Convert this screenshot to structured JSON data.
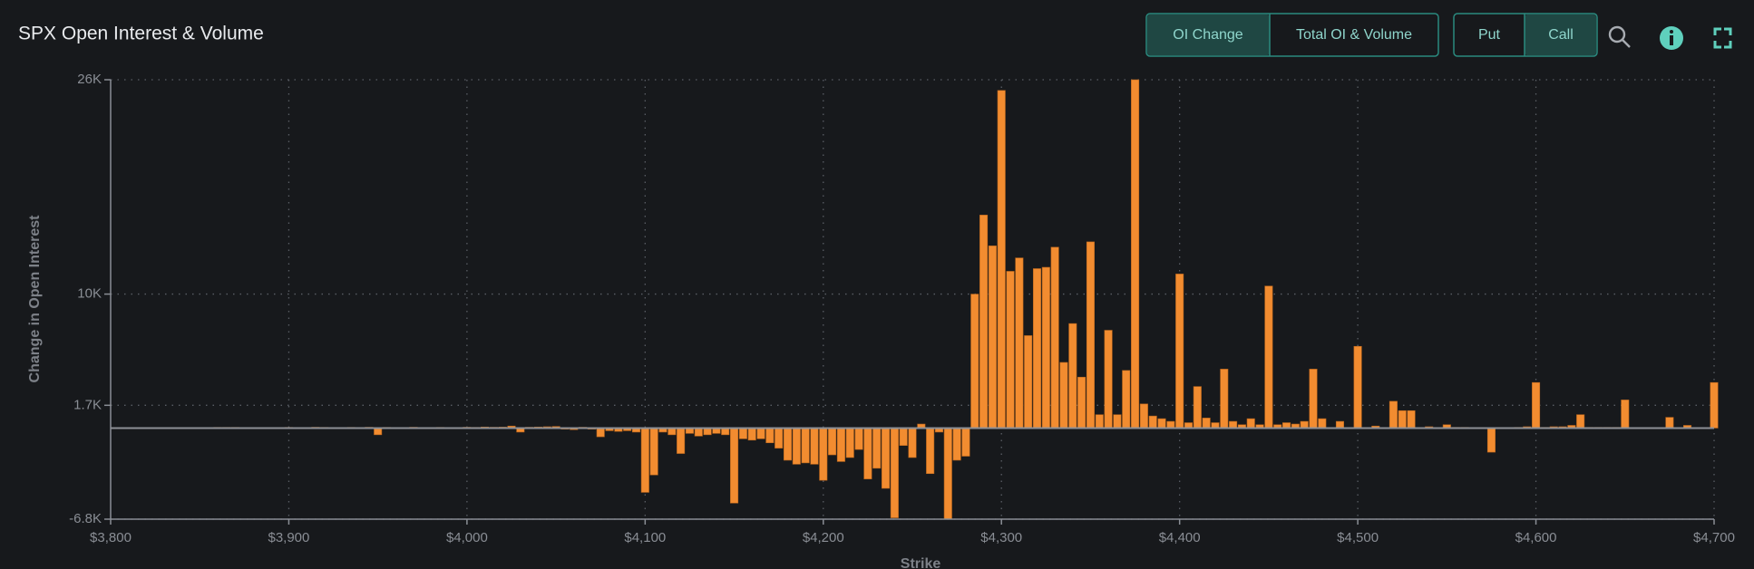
{
  "controls": [
    "OI Change",
    "Total OI & Volume",
    "Put",
    "Call"
  ],
  "chart_data": {
    "type": "bar",
    "title": "SPX Open Interest & Volume",
    "x_label": "Strike",
    "y_label": "Change in Open Interest",
    "color": "#f28c30",
    "grid": true,
    "xlim": [
      3800,
      4700
    ],
    "xticks": [
      {
        "value": 3800,
        "label": "$3,800"
      },
      {
        "value": 3900,
        "label": "$3,900"
      },
      {
        "value": 4000,
        "label": "$4,000"
      },
      {
        "value": 4100,
        "label": "$4,100"
      },
      {
        "value": 4200,
        "label": "$4,200"
      },
      {
        "value": 4300,
        "label": "$4,300"
      },
      {
        "value": 4400,
        "label": "$4,400"
      },
      {
        "value": 4500,
        "label": "$4,500"
      },
      {
        "value": 4600,
        "label": "$4,600"
      },
      {
        "value": 4700,
        "label": "$4,700"
      }
    ],
    "ylim": [
      -6800,
      26000
    ],
    "yticks": [
      {
        "value": -6800,
        "label": "-6.8K"
      },
      {
        "value": 1700,
        "label": "1.7K"
      },
      {
        "value": 10000,
        "label": "10K"
      },
      {
        "value": 26000,
        "label": "26K"
      }
    ],
    "x": [
      3860,
      3865,
      3870,
      3875,
      3880,
      3885,
      3890,
      3895,
      3900,
      3905,
      3910,
      3915,
      3920,
      3925,
      3930,
      3935,
      3940,
      3945,
      3950,
      3955,
      3960,
      3965,
      3970,
      3975,
      3980,
      3985,
      3990,
      3995,
      4000,
      4005,
      4010,
      4015,
      4020,
      4025,
      4030,
      4035,
      4040,
      4045,
      4050,
      4055,
      4060,
      4065,
      4070,
      4075,
      4080,
      4085,
      4090,
      4095,
      4100,
      4105,
      4110,
      4115,
      4120,
      4125,
      4130,
      4135,
      4140,
      4145,
      4150,
      4155,
      4160,
      4165,
      4170,
      4175,
      4180,
      4185,
      4190,
      4195,
      4200,
      4205,
      4210,
      4215,
      4220,
      4225,
      4230,
      4235,
      4240,
      4245,
      4250,
      4255,
      4260,
      4265,
      4270,
      4275,
      4280,
      4285,
      4290,
      4295,
      4300,
      4305,
      4310,
      4315,
      4320,
      4325,
      4330,
      4335,
      4340,
      4345,
      4350,
      4355,
      4360,
      4365,
      4370,
      4375,
      4380,
      4385,
      4390,
      4395,
      4400,
      4405,
      4410,
      4415,
      4420,
      4425,
      4430,
      4435,
      4440,
      4445,
      4450,
      4455,
      4460,
      4465,
      4470,
      4475,
      4480,
      4485,
      4490,
      4495,
      4500,
      4505,
      4510,
      4515,
      4520,
      4525,
      4530,
      4535,
      4540,
      4545,
      4550,
      4555,
      4560,
      4565,
      4570,
      4575,
      4580,
      4585,
      4590,
      4595,
      4600,
      4605,
      4610,
      4615,
      4620,
      4625,
      4630,
      4635,
      4640,
      4645,
      4650,
      4655,
      4660,
      4665,
      4670,
      4675,
      4680,
      4685,
      4690,
      4695,
      4700
    ],
    "values": [
      50,
      50,
      50,
      30,
      40,
      30,
      40,
      30,
      50,
      40,
      30,
      60,
      50,
      40,
      30,
      50,
      40,
      60,
      -500,
      50,
      40,
      30,
      60,
      40,
      30,
      50,
      40,
      30,
      60,
      50,
      80,
      60,
      70,
      150,
      -300,
      60,
      80,
      100,
      120,
      -80,
      -120,
      60,
      -80,
      -650,
      -200,
      -250,
      -200,
      -300,
      -4800,
      -3500,
      -300,
      -500,
      -1900,
      -400,
      -600,
      -500,
      -400,
      -500,
      -5600,
      -800,
      -900,
      -800,
      -1100,
      -1500,
      -2400,
      -2700,
      -2600,
      -2700,
      -3900,
      -2000,
      -2500,
      -2200,
      -1600,
      -3800,
      -3000,
      -4500,
      -6700,
      -1300,
      -2200,
      300,
      -3400,
      -300,
      -6800,
      -2400,
      -2100,
      10000,
      15900,
      13600,
      25200,
      11700,
      12700,
      6900,
      11900,
      12000,
      13500,
      4900,
      7800,
      3800,
      13900,
      1000,
      7300,
      1000,
      4300,
      26000,
      1800,
      900,
      700,
      500,
      11500,
      400,
      3100,
      750,
      400,
      4400,
      500,
      250,
      700,
      250,
      10600,
      250,
      400,
      300,
      500,
      4400,
      700,
      0,
      500,
      0,
      6100,
      0,
      150,
      0,
      2000,
      1300,
      1300,
      0,
      100,
      0,
      250,
      50,
      50,
      -50,
      -50,
      -1800,
      -50,
      -50,
      50,
      100,
      3400,
      50,
      100,
      100,
      200,
      1000,
      50,
      50,
      50,
      50,
      2100,
      0,
      0,
      0,
      0,
      800,
      0,
      200,
      0,
      0,
      3400
    ]
  }
}
